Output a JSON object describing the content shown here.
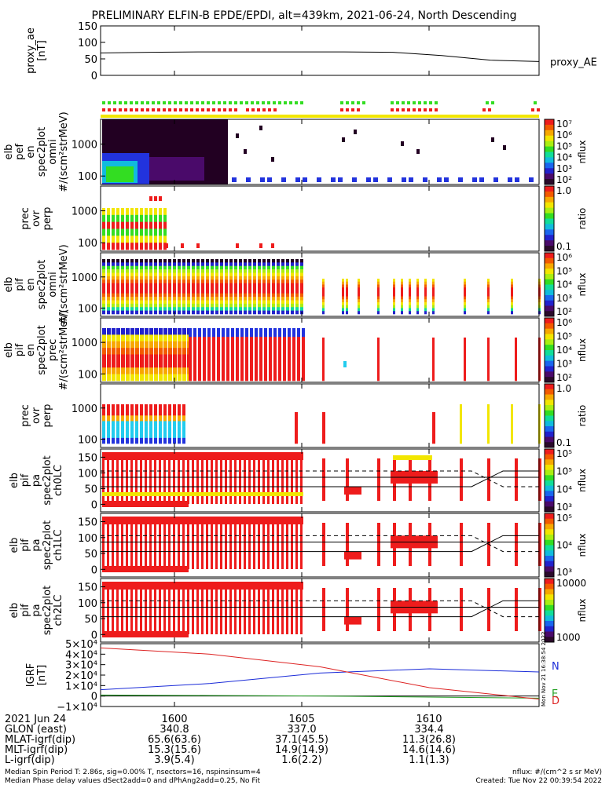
{
  "title": "PRELIMINARY ELFIN-B EPDE/EPDI, alt=439km, 2021-06-24, North Descending",
  "panels": {
    "ae": {
      "ylabel": [
        "proxy_ae",
        "[nT]"
      ],
      "ticks": [
        "150",
        "100",
        "50",
        "0"
      ],
      "legend": "proxy_AE"
    },
    "p1": {
      "ylabel": [
        "elb",
        "pef",
        "en",
        "spec2plot",
        "omni",
        "#/(scm²strMeV)"
      ],
      "ticks": [
        "1000",
        "100"
      ],
      "cbar_ticks": [
        "10⁷",
        "10⁶",
        "10⁵",
        "10⁴",
        "10³",
        "10²"
      ],
      "cbar_label": "nflux"
    },
    "p2": {
      "ylabel": [
        "prec",
        "ovr",
        "perp"
      ],
      "ticks": [
        "1000",
        "100"
      ],
      "cbar_ticks": [
        "1.0",
        "0.1"
      ],
      "cbar_label": "ratio"
    },
    "p3": {
      "ylabel": [
        "elb",
        "pif",
        "en",
        "spec2plot",
        "omni",
        "#/(scm²strMeV)"
      ],
      "ticks": [
        "1000",
        "100"
      ],
      "cbar_ticks": [
        "10⁶",
        "10⁵",
        "10⁴",
        "10³",
        "10²"
      ],
      "cbar_label": "nflux"
    },
    "p4": {
      "ylabel": [
        "elb",
        "pif",
        "en",
        "spec2plot",
        "prec",
        "#/(scm²strMeV)"
      ],
      "ticks": [
        "1000",
        "100"
      ],
      "cbar_ticks": [
        "10⁶",
        "10⁵",
        "10⁴",
        "10³",
        "10²"
      ],
      "cbar_label": "nflux"
    },
    "p5": {
      "ylabel": [
        "prec",
        "ovr",
        "perp"
      ],
      "ticks": [
        "1000",
        "100"
      ],
      "cbar_ticks": [
        "1.0",
        "0.1"
      ],
      "cbar_label": "ratio"
    },
    "p6": {
      "ylabel": [
        "elb",
        "pif",
        "pa",
        "spec2plot",
        "ch0LC"
      ],
      "ticks": [
        "150",
        "100",
        "50",
        "0"
      ],
      "cbar_ticks": [
        "10⁵",
        "10⁵",
        "10⁴",
        "10³"
      ],
      "cbar_label": "nflux"
    },
    "p7": {
      "ylabel": [
        "elb",
        "pif",
        "pa",
        "spec2plot",
        "ch1LC"
      ],
      "ticks": [
        "150",
        "100",
        "50",
        "0"
      ],
      "cbar_ticks": [
        "10⁵",
        "10⁴",
        "10³"
      ],
      "cbar_label": "nflux"
    },
    "p8": {
      "ylabel": [
        "elb",
        "pif",
        "pa",
        "spec2plot",
        "ch2LC"
      ],
      "ticks": [
        "150",
        "100",
        "50",
        "0"
      ],
      "cbar_ticks": [
        "10000",
        "1000"
      ],
      "cbar_label": "nflux"
    },
    "igrf": {
      "ylabel": [
        "IGRF",
        "[nT]"
      ],
      "ticks": [
        "5×10⁴",
        "4×10⁴",
        "3×10⁴",
        "2×10⁴",
        "1×10⁴",
        "0",
        "−1×10⁴"
      ],
      "legend": [
        "N",
        "E",
        "D"
      ],
      "stamp": "Mon Nov 21 16:38:54 2022"
    }
  },
  "footer": {
    "rows": [
      {
        "label": "2021 Jun 24",
        "v": [
          "1600",
          "1605",
          "1610"
        ]
      },
      {
        "label": "GLON (east)",
        "v": [
          "340.8",
          "337.0",
          "334.4"
        ]
      },
      {
        "label": "MLAT-igrf(dip)",
        "v": [
          "65.6(63.6)",
          "37.1(45.5)",
          "11.3(26.8)"
        ]
      },
      {
        "label": "MLT-igrf(dip)",
        "v": [
          "15.3(15.6)",
          "14.9(14.9)",
          "14.6(14.6)"
        ]
      },
      {
        "label": "L-igrf(dip)",
        "v": [
          "3.9(5.4)",
          "1.6(2.2)",
          "1.1(1.3)"
        ]
      }
    ],
    "note1": "Median Spin Period T: 2.86s, sig=0.00% T, nsectors=16, nspinsinsum=4",
    "note2": "Median Phase delay values dSect2add=0 and dPhAng2add=0.25, No Fit",
    "units": "nflux: #/(cm^2 s sr MeV)",
    "created": "Created: Tue Nov 22 00:39:54 2022"
  },
  "colors": {
    "red": "#ee1c1c",
    "yellow": "#f2e600",
    "green": "#33dd22",
    "cyan": "#22ccee",
    "blue": "#2233dd",
    "dark": "#220022",
    "N": "#1a2bd8",
    "E": "#22a022",
    "D": "#dd2222"
  },
  "chart_data": [
    {
      "type": "line",
      "title": "PRELIMINARY ELFIN-B EPDE/EPDI, alt=439km, 2021-06-24, North Descending",
      "ylabel": "proxy_ae [nT]",
      "ylim": [
        0,
        150
      ],
      "x": [
        "15:57",
        "15:59",
        "16:01",
        "16:03",
        "16:05",
        "16:07",
        "16:09",
        "16:11",
        "16:13",
        "16:14"
      ],
      "series": [
        {
          "name": "proxy_AE",
          "values": [
            68,
            70,
            71,
            71,
            71,
            71,
            70,
            60,
            46,
            42
          ]
        }
      ]
    },
    {
      "type": "line",
      "ylabel": "IGRF [nT]",
      "ylim": [
        -10000,
        50000
      ],
      "x": [
        "15:57",
        "16:00",
        "16:05",
        "16:10",
        "16:14"
      ],
      "series": [
        {
          "name": "N",
          "values": [
            6000,
            12000,
            22000,
            26000,
            23000
          ]
        },
        {
          "name": "E",
          "values": [
            1000,
            500,
            0,
            -1000,
            -2000
          ]
        },
        {
          "name": "D",
          "values": [
            46000,
            40000,
            28000,
            8000,
            -3000
          ]
        }
      ]
    }
  ]
}
